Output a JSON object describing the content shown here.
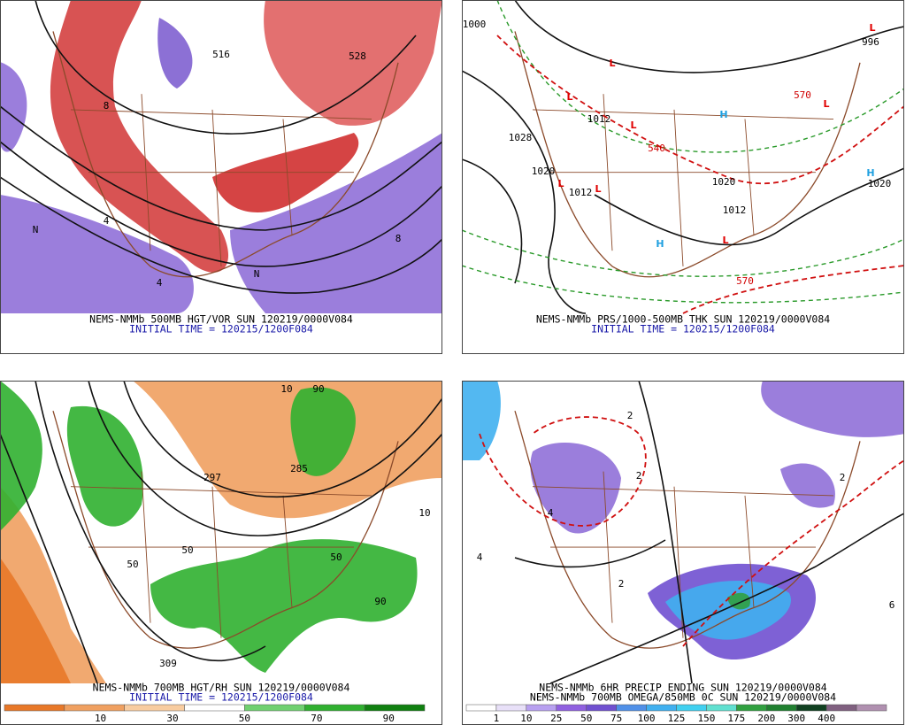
{
  "panels": [
    {
      "caption": [
        "NEMS-NMMb 500MB HGT/VOR SUN 120219/0000V084",
        "INITIAL TIME = 120215/1200F084"
      ],
      "labels": [
        {
          "text": "516",
          "color": "#000000"
        },
        {
          "text": "528",
          "color": "#000000"
        },
        {
          "text": "8",
          "color": "#000000"
        },
        {
          "text": "4",
          "color": "#000000"
        },
        {
          "text": "N",
          "color": "#000000"
        },
        {
          "text": "N",
          "color": "#000000"
        },
        {
          "text": "8",
          "color": "#000000"
        },
        {
          "text": "4",
          "color": "#000000"
        }
      ]
    },
    {
      "caption": [
        "NEMS-NMMb PRS/1000-500MB THK SUN 120219/0000V084",
        "INITIAL TIME = 120215/1200F084"
      ],
      "labels": [
        {
          "text": "1000",
          "color": "#000000"
        },
        {
          "text": "L",
          "color": "#e00000"
        },
        {
          "text": "L",
          "color": "#e00000"
        },
        {
          "text": "1012",
          "color": "#000000"
        },
        {
          "text": "L",
          "color": "#e00000"
        },
        {
          "text": "H",
          "color": "#20a0e0"
        },
        {
          "text": "1028",
          "color": "#000000"
        },
        {
          "text": "540",
          "color": "#d00000"
        },
        {
          "text": "L",
          "color": "#e00000"
        },
        {
          "text": "1020",
          "color": "#000000"
        },
        {
          "text": "L",
          "color": "#e00000"
        },
        {
          "text": "L",
          "color": "#e00000"
        },
        {
          "text": "1012",
          "color": "#000000"
        },
        {
          "text": "1020",
          "color": "#000000"
        },
        {
          "text": "H",
          "color": "#20a0e0"
        },
        {
          "text": "1020",
          "color": "#000000"
        },
        {
          "text": "H",
          "color": "#20a0e0"
        },
        {
          "text": "L",
          "color": "#e00000"
        },
        {
          "text": "1012",
          "color": "#000000"
        },
        {
          "text": "570",
          "color": "#d00000"
        },
        {
          "text": "570",
          "color": "#d00000"
        },
        {
          "text": "L",
          "color": "#e00000"
        },
        {
          "text": "996",
          "color": "#000000"
        }
      ]
    },
    {
      "caption": [
        "NEMS-NMMb 700MB HGT/RH SUN 120219/0000V084",
        "INITIAL TIME = 120215/1200F084"
      ],
      "labels": [
        {
          "text": "90",
          "color": "#000000"
        },
        {
          "text": "10",
          "color": "#000000"
        },
        {
          "text": "50",
          "color": "#000000"
        },
        {
          "text": "297",
          "color": "#000000"
        },
        {
          "text": "285",
          "color": "#000000"
        },
        {
          "text": "309",
          "color": "#000000"
        },
        {
          "text": "50",
          "color": "#000000"
        },
        {
          "text": "90",
          "color": "#000000"
        },
        {
          "text": "10",
          "color": "#000000"
        },
        {
          "text": "50",
          "color": "#000000"
        }
      ],
      "colorbar": {
        "colors": [
          "#e87828",
          "#f0a060",
          "#f8cca0",
          "#ffffff",
          "#70d070",
          "#30b030",
          "#108010"
        ],
        "labels": [
          "10",
          "30",
          "50",
          "70",
          "90"
        ]
      }
    },
    {
      "caption": [
        "NEMS-NMMb 6HR PRECIP ENDING SUN 120219/0000V084",
        "NEMS-NMMb 700MB OMEGA/850MB 0C SUN 120219/0000V084"
      ],
      "labels": [
        {
          "text": "2",
          "color": "#000000"
        },
        {
          "text": "2",
          "color": "#000000"
        },
        {
          "text": "4",
          "color": "#000000"
        },
        {
          "text": "2",
          "color": "#000000"
        },
        {
          "text": "4",
          "color": "#000000"
        },
        {
          "text": "2",
          "color": "#000000"
        },
        {
          "text": "6",
          "color": "#000000"
        }
      ],
      "colorbar": {
        "colors": [
          "#ffffff",
          "#e8e0f8",
          "#b8a0f0",
          "#9060e0",
          "#7050d0",
          "#5090e8",
          "#40b0f0",
          "#40d0f0",
          "#60e0d0",
          "#30a040",
          "#208030",
          "#104020",
          "#806080",
          "#b090b0"
        ],
        "labels": [
          "1",
          "10",
          "25",
          "50",
          "75",
          "100",
          "125",
          "150",
          "175",
          "200",
          "300",
          "400"
        ]
      }
    }
  ]
}
